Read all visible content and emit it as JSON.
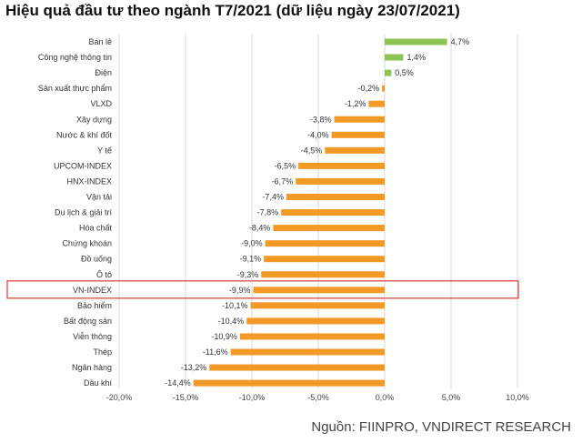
{
  "title": "Hiệu quả đầu tư theo ngành T7/2021 (dữ liệu ngày 23/07/2021)",
  "source": "Nguồn: FIINPRO, VNDIRECT RESEARCH",
  "colors": {
    "positive": "#8dc455",
    "negative": "#f39a26",
    "highlight_box": "#e0484a",
    "grid": "#d9d9d9"
  },
  "chart_data": {
    "type": "bar",
    "orientation": "horizontal",
    "title": "Hiệu quả đầu tư theo ngành T7/2021 (dữ liệu ngày 23/07/2021)",
    "categories": [
      "Bán lẻ",
      "Công nghệ thông tin",
      "Điện",
      "Sản xuất thực phẩm",
      "VLXD",
      "Xây dựng",
      "Nước & khí đốt",
      "Y tế",
      "UPCOM-INDEX",
      "HNX-INDEX",
      "Vận tải",
      "Du lịch & giải trí",
      "Hóa chất",
      "Chứng khoán",
      "Đồ uống",
      "Ô tô",
      "VN-INDEX",
      "Bảo hiểm",
      "Bất động sản",
      "Viễn thông",
      "Thép",
      "Ngân hàng",
      "Dầu khí"
    ],
    "values": [
      4.7,
      1.4,
      0.5,
      -0.2,
      -1.2,
      -3.8,
      -4.0,
      -4.5,
      -6.5,
      -6.7,
      -7.4,
      -7.8,
      -8.4,
      -9.0,
      -9.1,
      -9.3,
      -9.9,
      -10.1,
      -10.4,
      -10.9,
      -11.6,
      -13.2,
      -14.4
    ],
    "value_labels": [
      "4,7%",
      "1,4%",
      "0,5%",
      "-0,2%",
      "-1,2%",
      "-3,8%",
      "-4,0%",
      "-4,5%",
      "-6,5%",
      "-6,7%",
      "-7,4%",
      "-7,8%",
      "-8,4%",
      "-9,0%",
      "-9,1%",
      "-9,3%",
      "-9,9%",
      "-10,1%",
      "-10,4%",
      "-10,9%",
      "-11,6%",
      "-13,2%",
      "-14,4%"
    ],
    "xlim": [
      -20,
      10
    ],
    "x_ticks": [
      -20,
      -15,
      -10,
      -5,
      0,
      5,
      10
    ],
    "x_tick_labels": [
      "-20,0%",
      "-15,0%",
      "-10,0%",
      "-5,0%",
      "0,0%",
      "5,0%",
      "10,0%"
    ],
    "grid": true,
    "highlight_category": "VN-INDEX",
    "xlabel": "",
    "ylabel": ""
  }
}
